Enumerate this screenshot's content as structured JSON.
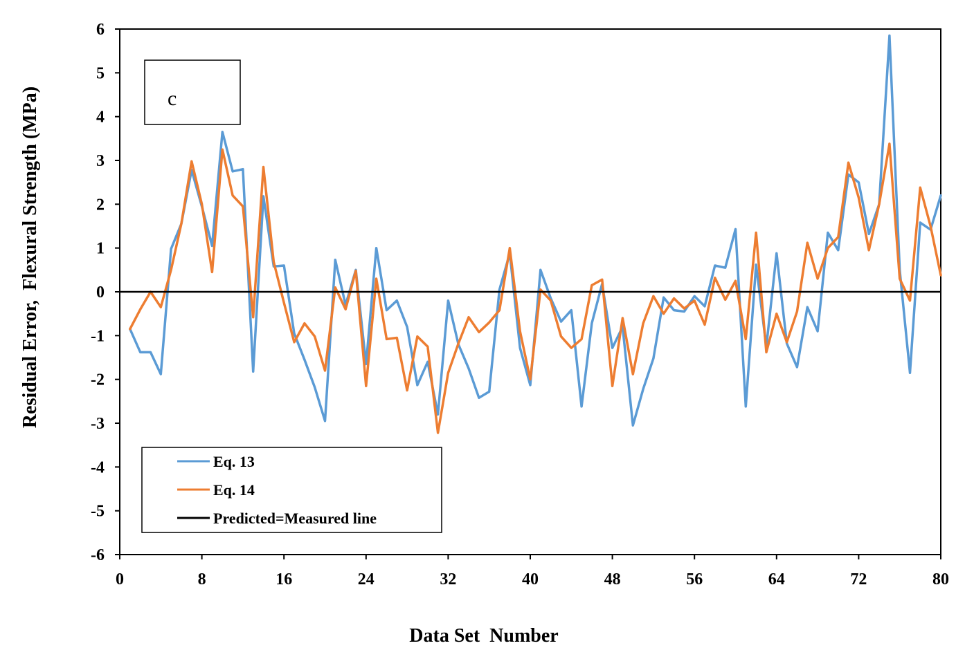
{
  "chart_data": {
    "type": "line",
    "title": "",
    "panel_label": "c",
    "xlabel": "Data Set  Number",
    "ylabel": "Residual Error,  Flexural Strength (MPa)",
    "xlim": [
      0,
      80
    ],
    "ylim": [
      -6,
      6
    ],
    "xticks": [
      0,
      8,
      16,
      24,
      32,
      40,
      48,
      56,
      64,
      72,
      80
    ],
    "yticks": [
      -6,
      -5,
      -4,
      -3,
      -2,
      -1,
      0,
      1,
      2,
      3,
      4,
      5,
      6
    ],
    "grid": false,
    "legend_position": "bottom-left",
    "reference_line": {
      "name": "Predicted=Measured line",
      "y": 0,
      "color": "#000000"
    },
    "series": [
      {
        "name": "Eq. 13",
        "color": "#5B9BD5",
        "x": [
          1,
          2,
          3,
          4,
          5,
          6,
          7,
          8,
          9,
          10,
          11,
          12,
          13,
          14,
          15,
          16,
          17,
          18,
          19,
          20,
          21,
          22,
          23,
          24,
          25,
          26,
          27,
          28,
          29,
          30,
          31,
          32,
          33,
          34,
          35,
          36,
          37,
          38,
          39,
          40,
          41,
          42,
          43,
          44,
          45,
          46,
          47,
          48,
          49,
          50,
          51,
          52,
          53,
          54,
          55,
          56,
          57,
          58,
          59,
          60,
          61,
          62,
          63,
          64,
          65,
          66,
          67,
          68,
          69,
          70,
          71,
          72,
          73,
          74,
          75,
          76,
          77,
          78,
          79,
          80
        ],
        "values": [
          -0.85,
          -1.38,
          -1.38,
          -1.88,
          0.98,
          1.55,
          2.78,
          1.95,
          1.05,
          3.65,
          2.75,
          2.8,
          -1.82,
          2.18,
          0.58,
          0.6,
          -0.95,
          -1.55,
          -2.18,
          -2.95,
          0.73,
          -0.3,
          0.5,
          -1.65,
          1.0,
          -0.42,
          -0.2,
          -0.8,
          -2.13,
          -1.6,
          -2.8,
          -0.2,
          -1.2,
          -1.75,
          -2.42,
          -2.28,
          0.05,
          0.88,
          -1.28,
          -2.13,
          0.5,
          -0.15,
          -0.68,
          -0.42,
          -2.62,
          -0.72,
          0.18,
          -1.28,
          -0.8,
          -3.05,
          -2.22,
          -1.52,
          -0.13,
          -0.42,
          -0.45,
          -0.1,
          -0.33,
          0.6,
          0.55,
          1.43,
          -2.62,
          0.62,
          -1.25,
          0.88,
          -1.18,
          -1.72,
          -0.35,
          -0.9,
          1.35,
          0.95,
          2.68,
          2.5,
          1.32,
          2.0,
          5.85,
          0.5,
          -1.85,
          1.58,
          1.42,
          2.2
        ]
      },
      {
        "name": "Eq. 14",
        "color": "#ED7D31",
        "x": [
          1,
          2,
          3,
          4,
          5,
          6,
          7,
          8,
          9,
          10,
          11,
          12,
          13,
          14,
          15,
          16,
          17,
          18,
          19,
          20,
          21,
          22,
          23,
          24,
          25,
          26,
          27,
          28,
          29,
          30,
          31,
          32,
          33,
          34,
          35,
          36,
          37,
          38,
          39,
          40,
          41,
          42,
          43,
          44,
          45,
          46,
          47,
          48,
          49,
          50,
          51,
          52,
          53,
          54,
          55,
          56,
          57,
          58,
          59,
          60,
          61,
          62,
          63,
          64,
          65,
          66,
          67,
          68,
          69,
          70,
          71,
          72,
          73,
          74,
          75,
          76,
          77,
          78,
          79,
          80
        ],
        "values": [
          -0.85,
          -0.4,
          0.0,
          -0.35,
          0.5,
          1.55,
          2.98,
          2.0,
          0.45,
          3.25,
          2.2,
          1.95,
          -0.58,
          2.85,
          0.68,
          -0.25,
          -1.15,
          -0.72,
          -1.02,
          -1.8,
          0.1,
          -0.4,
          0.48,
          -2.15,
          0.3,
          -1.08,
          -1.05,
          -2.25,
          -1.02,
          -1.25,
          -3.22,
          -1.85,
          -1.18,
          -0.58,
          -0.92,
          -0.7,
          -0.42,
          1.0,
          -0.9,
          -2.0,
          0.05,
          -0.2,
          -1.02,
          -1.28,
          -1.08,
          0.15,
          0.28,
          -2.15,
          -0.6,
          -1.88,
          -0.72,
          -0.1,
          -0.5,
          -0.15,
          -0.38,
          -0.2,
          -0.75,
          0.32,
          -0.18,
          0.25,
          -1.08,
          1.35,
          -1.38,
          -0.5,
          -1.15,
          -0.45,
          1.12,
          0.3,
          1.0,
          1.25,
          2.95,
          2.15,
          0.95,
          2.0,
          3.38,
          0.3,
          -0.2,
          2.38,
          1.5,
          0.38
        ]
      }
    ]
  }
}
